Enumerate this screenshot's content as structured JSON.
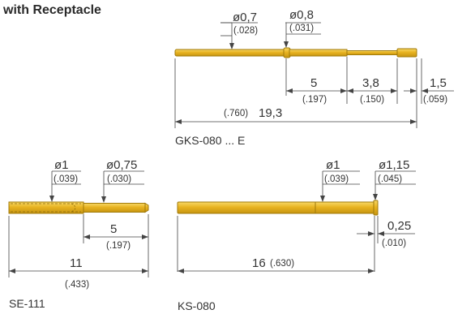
{
  "title": "with Receptacle",
  "colors": {
    "gold": "#e6ad1e",
    "gold_light": "#f5cf55",
    "gold_dark": "#b98a0c",
    "line": "#444444",
    "text": "#333333"
  },
  "gks": {
    "name": "GKS-080 ... E",
    "d1": "ø0,7",
    "d1_in": "(.028)",
    "d2": "ø0,8",
    "d2_in": "(.031)",
    "len_a": "5",
    "len_a_in": "(.197)",
    "len_b": "3,8",
    "len_b_in": "(.150)",
    "len_c": "1,5",
    "len_c_in": "(.059)",
    "total_in": "(.760)",
    "total": "19,3"
  },
  "se": {
    "name": "SE-111",
    "d1": "ø1",
    "d1_in": "(.039)",
    "d2": "ø0,75",
    "d2_in": "(.030)",
    "len_a": "5",
    "len_a_in": "(.197)",
    "total": "11",
    "total_in": "(.433)"
  },
  "ks": {
    "name": "KS-080",
    "d1": "ø1",
    "d1_in": "(.039)",
    "d2": "ø1,15",
    "d2_in": "(.045)",
    "small": "0,25",
    "small_in": "(.010)",
    "total": "16",
    "total_in": "(.630)"
  }
}
